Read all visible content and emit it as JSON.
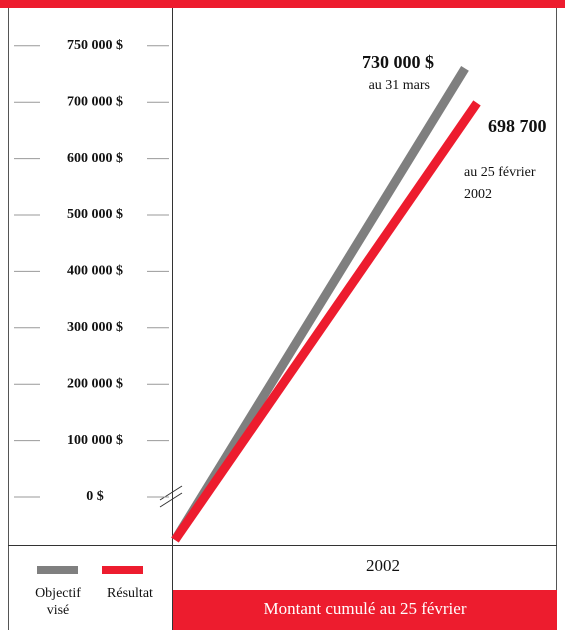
{
  "chart_data": {
    "type": "line",
    "categories": [
      "2002"
    ],
    "series": [
      {
        "name": "Objectif visé",
        "color": "#7f7f7f",
        "values": [
          730000
        ]
      },
      {
        "name": "Résultat",
        "color": "#ed1c2e",
        "values": [
          698700
        ]
      }
    ],
    "annotations": [
      {
        "value": "730 000 $",
        "note": "au 31 mars"
      },
      {
        "value": "698 700",
        "note": "au 25 février",
        "year": "2002"
      }
    ],
    "ylim": [
      0,
      750000
    ],
    "yticks": [
      {
        "value": 0,
        "label": "0 $"
      },
      {
        "value": 100000,
        "label": "100 000 $"
      },
      {
        "value": 200000,
        "label": "200 000 $"
      },
      {
        "value": 300000,
        "label": "300 000 $"
      },
      {
        "value": 400000,
        "label": "400 000 $"
      },
      {
        "value": 500000,
        "label": "500 000 $"
      },
      {
        "value": 600000,
        "label": "600 000 $"
      },
      {
        "value": 700000,
        "label": "700 000 $"
      },
      {
        "value": 750000,
        "label": "750 000 $"
      }
    ],
    "xlabel": "Montant cumulé au 25 février"
  }
}
